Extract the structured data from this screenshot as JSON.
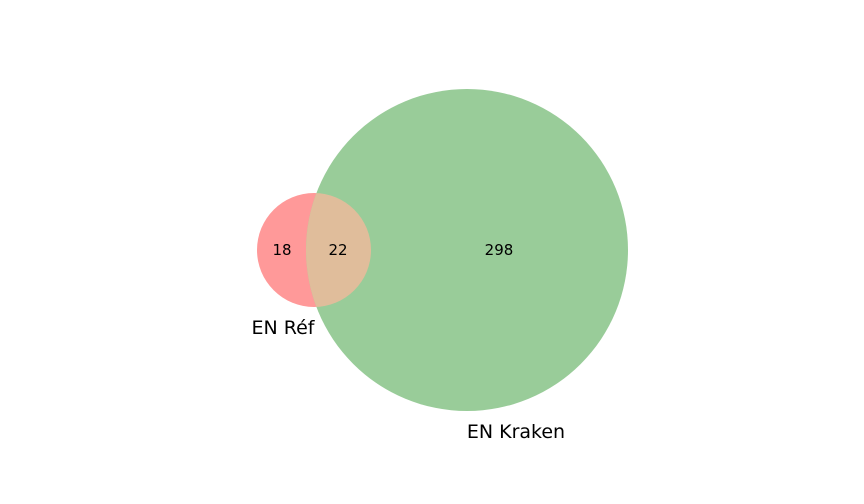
{
  "chart_data": {
    "type": "venn",
    "sets": [
      {
        "label": "EN Réf",
        "color": "#ff9999"
      },
      {
        "label": "EN Kraken",
        "color": "#99cc99"
      }
    ],
    "overlap_color": "#e0bd9b",
    "regions": {
      "only_ref": "18",
      "both": "22",
      "only_kraken": "298"
    }
  }
}
